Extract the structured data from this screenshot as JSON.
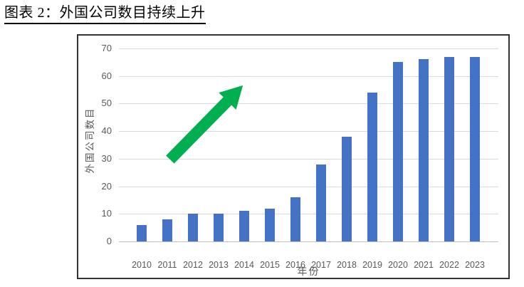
{
  "page": {
    "title": "图表 2：外国公司数目持续上升"
  },
  "chart_data": {
    "type": "bar",
    "categories": [
      "2010",
      "2011",
      "2012",
      "2013",
      "2014",
      "2015",
      "2016",
      "2017",
      "2018",
      "2019",
      "2020",
      "2021",
      "2022",
      "2023"
    ],
    "values": [
      6,
      8,
      10,
      10,
      11,
      12,
      16,
      28,
      38,
      54,
      65,
      66,
      67,
      67
    ],
    "title": "图表 2：外国公司数目持续上升",
    "xlabel": "年份",
    "ylabel": "外国公司数目",
    "ylim": [
      0,
      70
    ],
    "y_ticks": [
      0,
      10,
      20,
      30,
      40,
      50,
      60,
      70
    ],
    "grid": true,
    "legend": "none",
    "bar_color": "#4472C4",
    "gridline_color": "#D9D9D9",
    "axis_line_color": "#BFBFBF",
    "tick_label_color": "#595959",
    "annotation": {
      "type": "up-trend-arrow",
      "color": "#00B050"
    }
  }
}
